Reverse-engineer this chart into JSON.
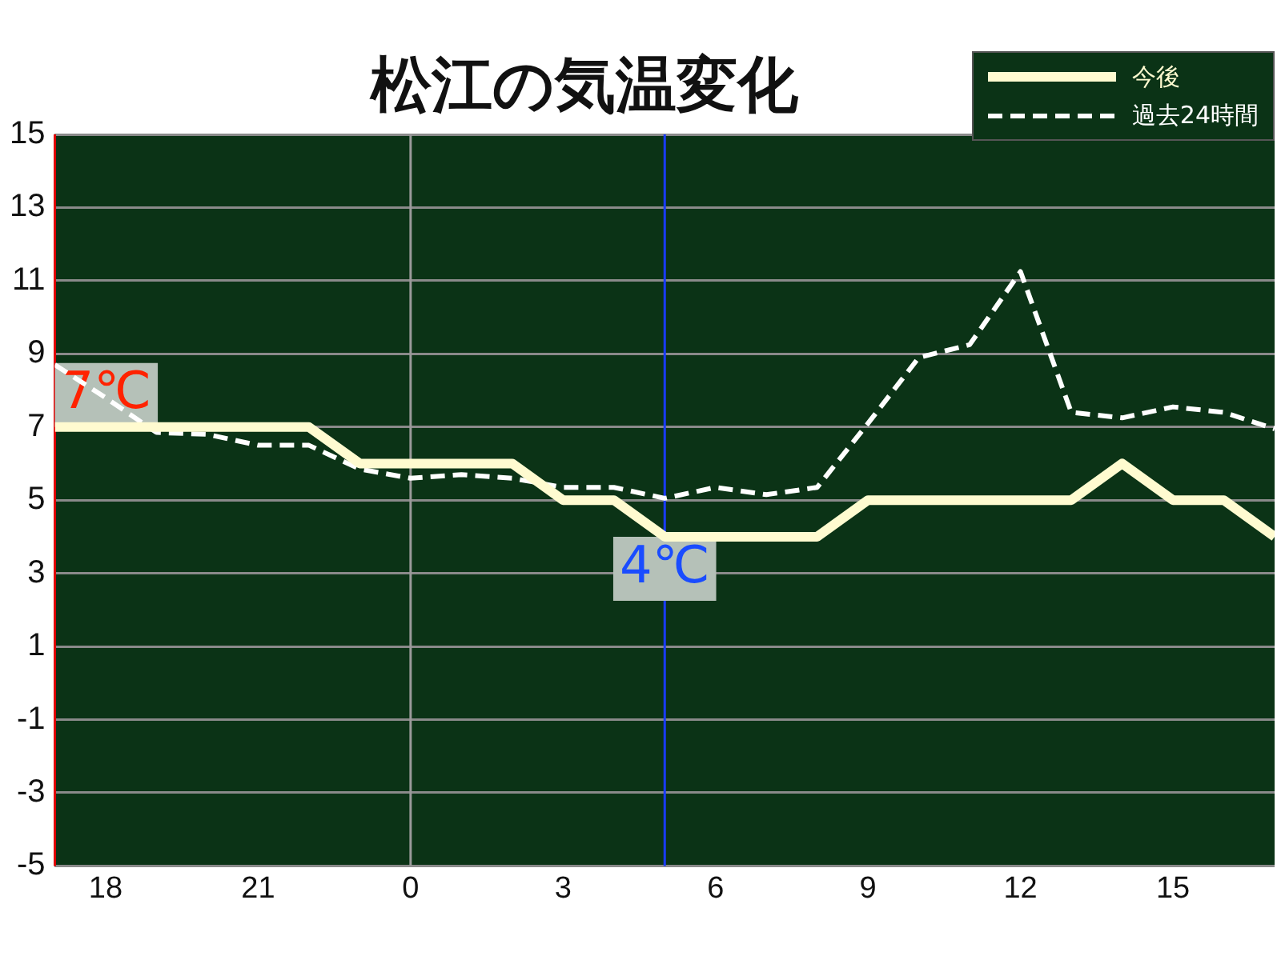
{
  "chart_data": {
    "type": "line",
    "title": "松江の気温変化",
    "x": [
      "--01-01T17:00",
      "--01-01T18:00",
      "--01-01T19:00",
      "--01-01T20:00",
      "--01-01T21:00",
      "--01-01T22:00",
      "--01-01T23:00",
      "--01-02T00:00",
      "--01-02T01:00",
      "--01-02T02:00",
      "--01-02T03:00",
      "--01-02T04:00",
      "--01-02T05:00",
      "--01-02T06:00",
      "--01-02T07:00",
      "--01-02T08:00",
      "--01-02T09:00",
      "--01-02T10:00",
      "--01-02T11:00",
      "--01-02T12:00",
      "--01-02T13:00",
      "--01-02T14:00",
      "--01-02T15:00",
      "--01-02T16:00",
      "--01-02T17:00"
    ],
    "series": [
      {
        "name": "今後",
        "color": "#fffbd0",
        "line_style": "solid",
        "values": [
          7,
          7,
          7,
          7,
          7,
          7,
          6,
          6,
          6,
          6,
          5,
          5,
          4,
          4,
          4,
          4,
          5,
          5,
          5,
          5,
          5,
          6,
          5,
          5,
          4
        ]
      },
      {
        "name": "過去24時間",
        "color": "#ffffff",
        "line_style": "dashed",
        "values": [
          8.7,
          7.8,
          6.85,
          6.8,
          6.5,
          6.5,
          5.85,
          5.6,
          5.7,
          5.6,
          5.35,
          5.35,
          5.05,
          5.35,
          5.15,
          5.35,
          7.1,
          8.9,
          9.25,
          11.25,
          7.4,
          7.25,
          7.55,
          7.4,
          6.95
        ]
      }
    ],
    "xlim": [
      "--01-01T17:00",
      "--01-02T17:00"
    ],
    "xticks": [
      {
        "value": "--01-01T18:00",
        "label": "18"
      },
      {
        "value": "--01-01T21:00",
        "label": "21"
      },
      {
        "value": "--01-02T00:00",
        "label": "0"
      },
      {
        "value": "--01-02T03:00",
        "label": "3"
      },
      {
        "value": "--01-02T06:00",
        "label": "6"
      },
      {
        "value": "--01-02T09:00",
        "label": "9"
      },
      {
        "value": "--01-02T12:00",
        "label": "12"
      },
      {
        "value": "--01-02T15:00",
        "label": "15"
      }
    ],
    "ylim": [
      -5,
      15
    ],
    "yticks": [
      -5,
      -3,
      -1,
      1,
      3,
      5,
      7,
      9,
      11,
      13,
      15
    ],
    "grid": "y",
    "legend": "top right",
    "marker": "none",
    "ref_lines": [
      {
        "axis": "x",
        "value": "--01-02T00:00",
        "color": "#9a9a9a"
      },
      {
        "axis": "x",
        "value": "--01-02T05:00",
        "color": "#1a3cff"
      }
    ],
    "annotations": [
      {
        "text": "7℃",
        "x": "--01-01T17:00",
        "y": 7
      },
      {
        "text": "4℃",
        "x": "--01-02T05:00",
        "y": 4
      }
    ]
  }
}
